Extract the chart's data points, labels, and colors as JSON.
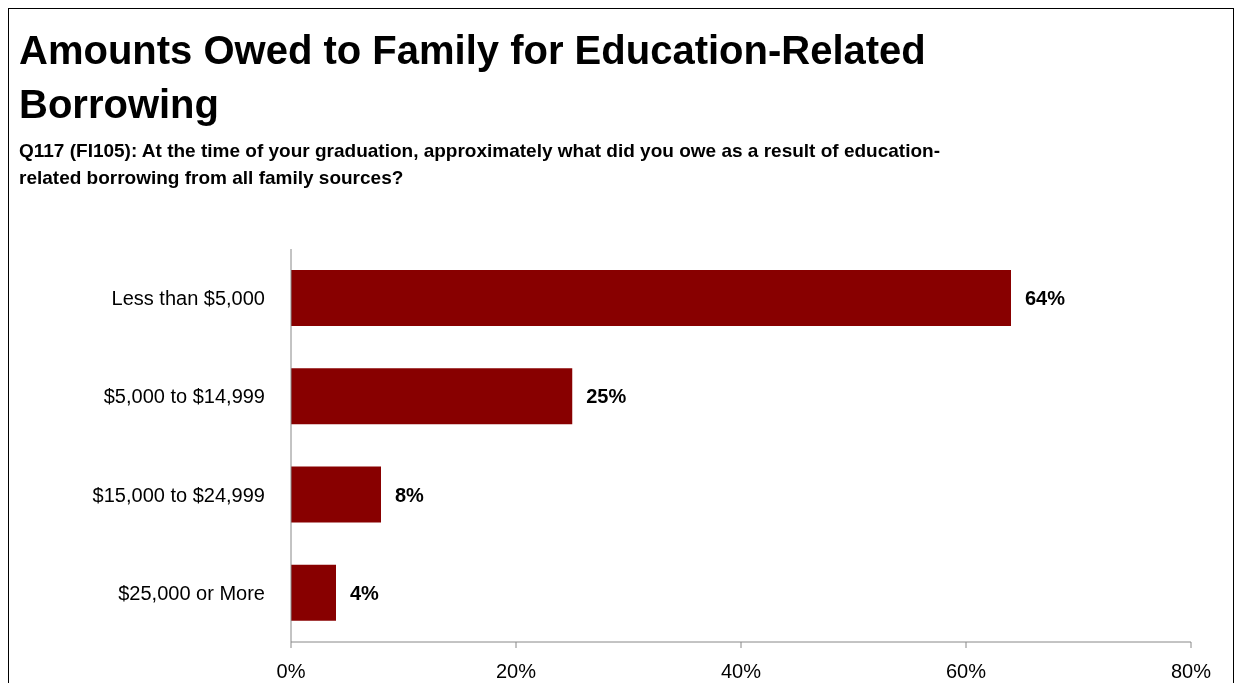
{
  "chart_data": {
    "type": "bar",
    "orientation": "horizontal",
    "title": "Amounts Owed to Family for Education-Related Borrowing",
    "subtitle": "Q117 (FI105): At the time of your graduation, approximately what did you owe as a result of education-related borrowing from all family sources?",
    "categories": [
      "Less than $5,000",
      "$5,000 to $14,999",
      "$15,000 to $24,999",
      "$25,000 or More"
    ],
    "values": [
      64,
      25,
      8,
      4
    ],
    "value_labels": [
      "64%",
      "25%",
      "8%",
      "4%"
    ],
    "color": "#880000",
    "xlim": [
      0,
      80
    ],
    "xticks": [
      {
        "value": 0,
        "label": "0%"
      },
      {
        "value": 20,
        "label": "20%"
      },
      {
        "value": 40,
        "label": "40%"
      },
      {
        "value": 60,
        "label": "60%"
      },
      {
        "value": 80,
        "label": "80%"
      }
    ],
    "grid": false,
    "legend": false
  }
}
